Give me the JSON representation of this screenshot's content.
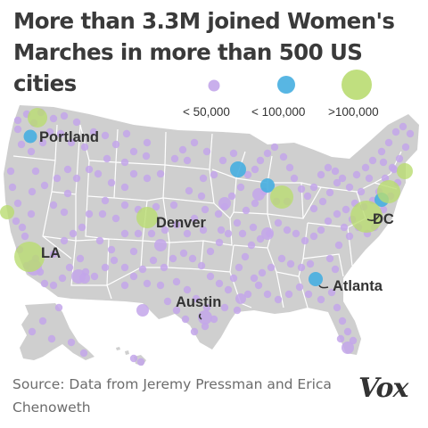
{
  "title": "More than 3.3M joined Women's Marches in more than 500 US cities",
  "colors": {
    "small": "#c3a6ea",
    "medium": "#46aee0",
    "large": "#b9dc71",
    "land": "#cfcfcf",
    "borders": "#ffffff"
  },
  "legend": [
    {
      "label": "< 50,000",
      "size": "small"
    },
    {
      "label": "< 100,000",
      "size": "medium"
    },
    {
      "label": ">100,000",
      "size": "large"
    }
  ],
  "city_labels": [
    {
      "name": "Portland",
      "size": "medium"
    },
    {
      "name": "Denver",
      "size": "large"
    },
    {
      "name": "LA",
      "size": "large"
    },
    {
      "name": "DC",
      "size": "large"
    },
    {
      "name": "Atlanta",
      "size": "medium"
    },
    {
      "name": "Austin",
      "size": "small"
    }
  ],
  "source": "Source: Data from Jeremy Pressman and Erica Chenoweth",
  "logo": "Vox"
}
